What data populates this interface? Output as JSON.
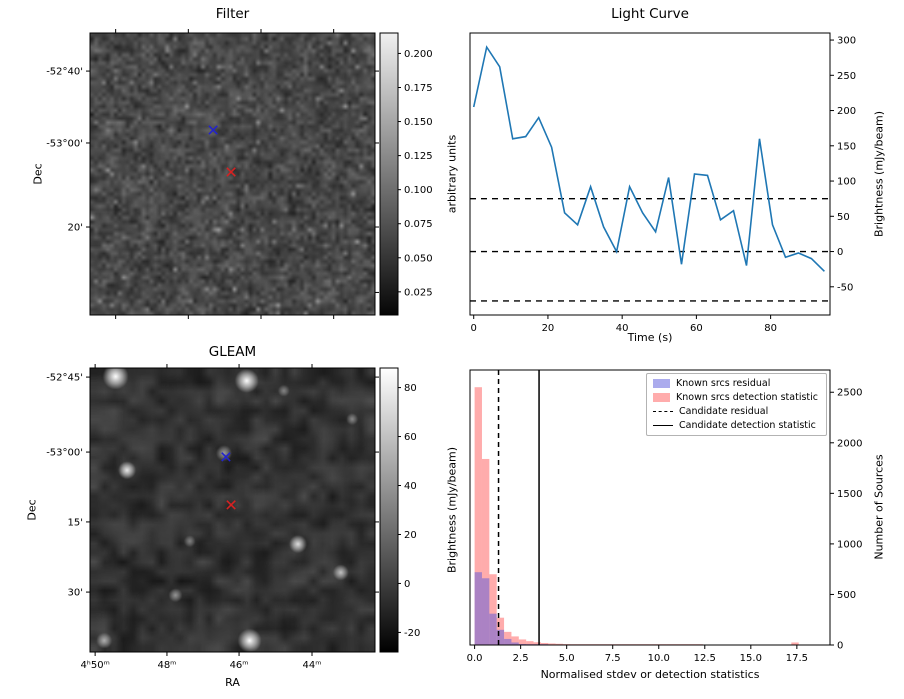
{
  "chart_data": [
    {
      "id": "filter_map",
      "type": "heatmap",
      "title": "Filter",
      "xlabel": "",
      "ylabel": "Dec",
      "ytick_labels": [
        "-52°40'",
        "-53°00'",
        "20'"
      ],
      "colorbar": {
        "label": "arbitrary units",
        "ticks": [
          0.2,
          0.175,
          0.15,
          0.125,
          0.1,
          0.075,
          0.05,
          0.025
        ],
        "vmin": 0.008,
        "vmax": 0.215
      },
      "markers": [
        {
          "name": "blue-x-marker",
          "color": "#2323cc",
          "fx": 0.432,
          "fy": 0.344
        },
        {
          "name": "red-x-marker",
          "color": "#d62222",
          "fx": 0.495,
          "fy": 0.493
        }
      ]
    },
    {
      "id": "light_curve",
      "type": "line",
      "title": "Light Curve",
      "xlabel": "Time (s)",
      "ylabel": "Brightness (mJy/beam)",
      "line_color": "#1f77b4",
      "x": [
        0,
        3.5,
        7,
        10.5,
        14,
        17.5,
        21,
        24.5,
        28,
        31.5,
        35,
        38.5,
        42,
        45.5,
        49,
        52.5,
        56,
        59.5,
        63,
        66.5,
        70,
        73.5,
        77,
        80.5,
        84,
        87.5,
        91,
        94.5
      ],
      "y": [
        205,
        290,
        262,
        160,
        163,
        190,
        148,
        55,
        38,
        92,
        35,
        0,
        92,
        55,
        28,
        105,
        -18,
        110,
        108,
        45,
        58,
        -20,
        160,
        38,
        -8,
        -2,
        -10,
        -28
      ],
      "xlim": [
        -1,
        96
      ],
      "ylim": [
        -90,
        310
      ],
      "xticks": [
        0,
        20,
        40,
        60,
        80
      ],
      "yticks": [
        -50,
        0,
        50,
        100,
        150,
        200,
        250,
        300
      ],
      "hlines": [
        {
          "y": 75,
          "style": "dashed"
        },
        {
          "y": 0,
          "style": "dashed"
        },
        {
          "y": -70,
          "style": "dashed"
        }
      ]
    },
    {
      "id": "gleam_map",
      "type": "heatmap",
      "title": "GLEAM",
      "xlabel": "RA",
      "ylabel": "Dec",
      "xtick_labels": [
        "4ʰ50ᵐ",
        "48ᵐ",
        "46ᵐ",
        "44ᵐ"
      ],
      "ytick_labels": [
        "-52°45'",
        "-53°00'",
        "15'",
        "30'"
      ],
      "colorbar": {
        "label": "Brightness (mJy/beam)",
        "ticks": [
          80,
          60,
          40,
          20,
          0,
          -20
        ],
        "vmin": -28,
        "vmax": 88
      },
      "markers": [
        {
          "name": "blue-x-marker",
          "color": "#2323cc",
          "fx": 0.477,
          "fy": 0.313
        },
        {
          "name": "red-x-marker",
          "color": "#d62222",
          "fx": 0.495,
          "fy": 0.482
        }
      ],
      "sources": [
        {
          "fx": 0.09,
          "fy": 0.03,
          "r": 13,
          "b": 1.0
        },
        {
          "fx": 0.55,
          "fy": 0.045,
          "r": 12,
          "b": 1.0
        },
        {
          "fx": 0.13,
          "fy": 0.36,
          "r": 9,
          "b": 0.9
        },
        {
          "fx": 0.47,
          "fy": 0.3,
          "r": 8,
          "b": 0.55
        },
        {
          "fx": 0.73,
          "fy": 0.62,
          "r": 9,
          "b": 0.85
        },
        {
          "fx": 0.88,
          "fy": 0.72,
          "r": 8,
          "b": 0.7
        },
        {
          "fx": 0.56,
          "fy": 0.96,
          "r": 12,
          "b": 1.0
        },
        {
          "fx": 0.3,
          "fy": 0.8,
          "r": 7,
          "b": 0.5
        },
        {
          "fx": 0.05,
          "fy": 0.96,
          "r": 8,
          "b": 0.6
        },
        {
          "fx": 0.92,
          "fy": 0.18,
          "r": 6,
          "b": 0.45
        },
        {
          "fx": 0.35,
          "fy": 0.61,
          "r": 6,
          "b": 0.4
        },
        {
          "fx": 0.68,
          "fy": 0.08,
          "r": 6,
          "b": 0.4
        }
      ]
    },
    {
      "id": "source_statistics",
      "type": "bar",
      "title": "",
      "xlabel": "Normalised stdev or detection statistics",
      "ylabel": "Number of Sources",
      "bin_start": 0,
      "bin_width": 0.4,
      "xlim": [
        -0.25,
        19.3
      ],
      "ylim": [
        0,
        2720
      ],
      "xticks": [
        0,
        2.5,
        5,
        7.5,
        10,
        12.5,
        15,
        17.5
      ],
      "yticks": [
        0,
        500,
        1000,
        1500,
        2000,
        2500
      ],
      "series": [
        {
          "name": "Known srcs residual",
          "color": "rgba(88,88,220,0.5)",
          "values": [
            720,
            660,
            310,
            150,
            60,
            25,
            10,
            4,
            2,
            1
          ]
        },
        {
          "name": "Known srcs detection statistic",
          "color": "rgba(255,70,70,0.45)",
          "values": [
            2550,
            1840,
            700,
            270,
            130,
            85,
            55,
            38,
            27,
            20,
            15,
            12,
            9,
            7,
            6,
            5,
            4,
            4,
            3,
            3,
            2,
            2,
            2,
            1,
            1,
            1,
            1,
            1,
            1,
            1,
            1,
            0,
            0,
            0,
            0,
            0,
            0,
            0,
            0,
            0,
            0,
            0,
            0,
            25
          ]
        }
      ],
      "vlines": [
        {
          "label": "Candidate residual",
          "x": 1.3,
          "style": "dashed"
        },
        {
          "label": "Candidate detection statistic",
          "x": 3.5,
          "style": "solid"
        }
      ]
    }
  ]
}
